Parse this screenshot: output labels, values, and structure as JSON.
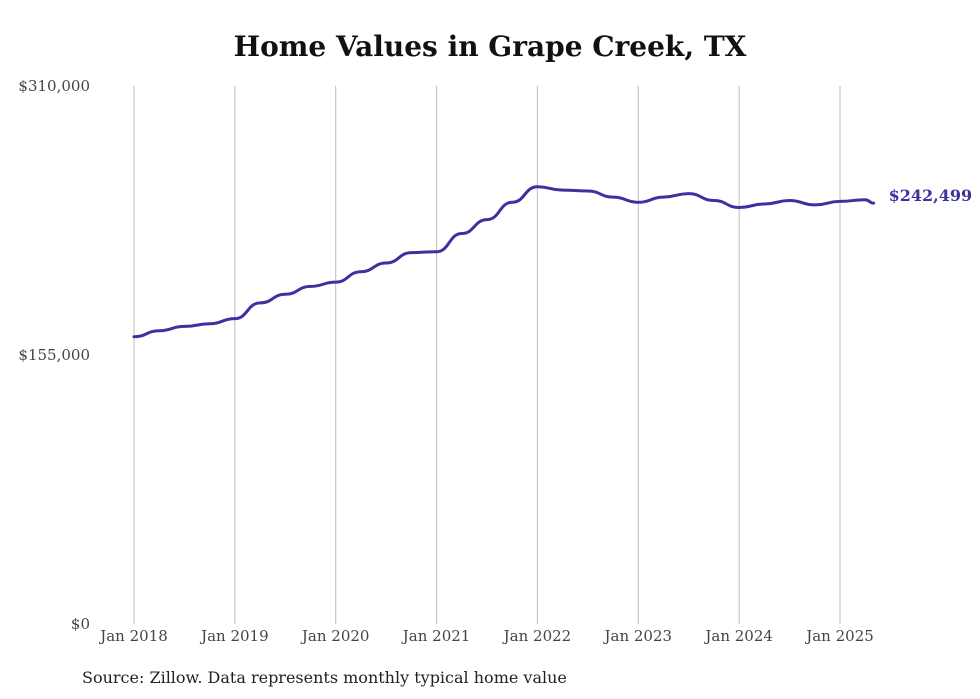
{
  "chart_data": {
    "type": "line",
    "title": "Home Values in Grape Creek, TX",
    "source": "Source: Zillow. Data represents monthly typical home value",
    "xlabel": "",
    "ylabel": "",
    "ylim": [
      0,
      310000
    ],
    "y_ticks": [
      {
        "value": 0,
        "label": "$0"
      },
      {
        "value": 155000,
        "label": "$155,000"
      },
      {
        "value": 310000,
        "label": "$310,000"
      }
    ],
    "x_ticks": [
      {
        "value": "2018-01",
        "label": "Jan 2018"
      },
      {
        "value": "2019-01",
        "label": "Jan 2019"
      },
      {
        "value": "2020-01",
        "label": "Jan 2020"
      },
      {
        "value": "2021-01",
        "label": "Jan 2021"
      },
      {
        "value": "2022-01",
        "label": "Jan 2022"
      },
      {
        "value": "2023-01",
        "label": "Jan 2023"
      },
      {
        "value": "2024-01",
        "label": "Jan 2024"
      },
      {
        "value": "2025-01",
        "label": "Jan 2025"
      }
    ],
    "grid": {
      "vertical": true,
      "horizontal": false
    },
    "series": [
      {
        "color": "#3b32a0",
        "end_label": "$242,499",
        "points": [
          [
            "2018-01",
            165500
          ],
          [
            "2018-04",
            169000
          ],
          [
            "2018-07",
            171500
          ],
          [
            "2018-10",
            173000
          ],
          [
            "2019-01",
            176000
          ],
          [
            "2019-04",
            185000
          ],
          [
            "2019-07",
            190000
          ],
          [
            "2019-10",
            194500
          ],
          [
            "2020-01",
            197000
          ],
          [
            "2020-04",
            203000
          ],
          [
            "2020-07",
            208000
          ],
          [
            "2020-10",
            214000
          ],
          [
            "2021-01",
            214500
          ],
          [
            "2021-04",
            225000
          ],
          [
            "2021-07",
            233000
          ],
          [
            "2021-10",
            243000
          ],
          [
            "2022-01",
            252000
          ],
          [
            "2022-04",
            250000
          ],
          [
            "2022-07",
            249500
          ],
          [
            "2022-10",
            246000
          ],
          [
            "2023-01",
            243000
          ],
          [
            "2023-04",
            246000
          ],
          [
            "2023-07",
            248000
          ],
          [
            "2023-10",
            244000
          ],
          [
            "2024-01",
            240000
          ],
          [
            "2024-04",
            242000
          ],
          [
            "2024-07",
            244000
          ],
          [
            "2024-10",
            241500
          ],
          [
            "2025-01",
            243500
          ],
          [
            "2025-04",
            244500
          ],
          [
            "2025-05",
            242499
          ]
        ]
      }
    ]
  }
}
